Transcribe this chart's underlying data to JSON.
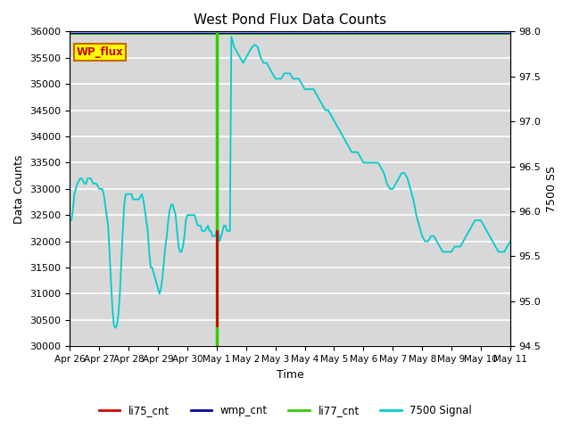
{
  "title": "West Pond Flux Data Counts",
  "xlabel": "Time",
  "ylabel_left": "Data Counts",
  "ylabel_right": "7500 SS",
  "ylim_left": [
    30000,
    36000
  ],
  "ylim_right": [
    94.5,
    98.0
  ],
  "bg_color": "#d8d8d8",
  "fig_bg_color": "#ffffff",
  "x_tick_labels": [
    "Apr 26",
    "Apr 27",
    "Apr 28",
    "Apr 29",
    "Apr 30",
    "May 1",
    "May 2",
    "May 3",
    "May 4",
    "May 5",
    "May 6",
    "May 7",
    "May 8",
    "May 9",
    "May 10",
    "May 11"
  ],
  "yticks_left": [
    30000,
    30500,
    31000,
    31500,
    32000,
    32500,
    33000,
    33500,
    34000,
    34500,
    35000,
    35500,
    36000
  ],
  "yticks_right": [
    94.5,
    95.0,
    95.5,
    96.0,
    96.5,
    97.0,
    97.5,
    98.0
  ],
  "wp_flux_box_color": "#ffff00",
  "wp_flux_text_color": "#cc0000",
  "wp_flux_border_color": "#cc6600",
  "legend_labels": [
    "li75_cnt",
    "wmp_cnt",
    "li77_cnt",
    "7500 Signal"
  ],
  "legend_colors": [
    "#cc0000",
    "#000099",
    "#00cc00",
    "#00cccc"
  ],
  "cyan_x": [
    0.0,
    0.05,
    0.1,
    0.15,
    0.2,
    0.25,
    0.3,
    0.35,
    0.4,
    0.45,
    0.5,
    0.55,
    0.6,
    0.65,
    0.7,
    0.8,
    0.9,
    1.0,
    1.05,
    1.1,
    1.15,
    1.2,
    1.25,
    1.3,
    1.35,
    1.4,
    1.45,
    1.5,
    1.55,
    1.6,
    1.65,
    1.7,
    1.75,
    1.8,
    1.85,
    1.9,
    1.95,
    2.0,
    2.05,
    2.1,
    2.15,
    2.2,
    2.25,
    2.3,
    2.35,
    2.4,
    2.45,
    2.5,
    2.55,
    2.6,
    2.65,
    2.7,
    2.75,
    2.8,
    2.85,
    2.9,
    2.95,
    3.0,
    3.05,
    3.1,
    3.15,
    3.2,
    3.25,
    3.3,
    3.35,
    3.4,
    3.45,
    3.5,
    3.55,
    3.6,
    3.65,
    3.7,
    3.75,
    3.8,
    3.85,
    3.9,
    3.95,
    4.0,
    4.05,
    4.1,
    4.15,
    4.2,
    4.25,
    4.3,
    4.35,
    4.4,
    4.45,
    4.5,
    4.55,
    4.6,
    4.65,
    4.7,
    4.75,
    4.8,
    4.85,
    4.9,
    4.95,
    5.0,
    5.05,
    5.1,
    5.15,
    5.2,
    5.25,
    5.3,
    5.35,
    5.4,
    5.45,
    5.5,
    5.6,
    5.7,
    5.8,
    5.9,
    6.0,
    6.1,
    6.2,
    6.3,
    6.4,
    6.5,
    6.6,
    6.7,
    6.8,
    6.9,
    7.0,
    7.1,
    7.2,
    7.3,
    7.4,
    7.5,
    7.6,
    7.7,
    7.8,
    7.9,
    8.0,
    8.1,
    8.2,
    8.3,
    8.4,
    8.5,
    8.6,
    8.7,
    8.8,
    8.9,
    9.0,
    9.1,
    9.2,
    9.3,
    9.4,
    9.5,
    9.6,
    9.7,
    9.8,
    9.9,
    10.0,
    10.1,
    10.2,
    10.3,
    10.4,
    10.5,
    10.6,
    10.7,
    10.8,
    10.9,
    11.0,
    11.1,
    11.2,
    11.3,
    11.4,
    11.5,
    11.6,
    11.7,
    11.8,
    11.9,
    12.0,
    12.1,
    12.2,
    12.3,
    12.4,
    12.5,
    12.6,
    12.7,
    12.8,
    12.9,
    13.0,
    13.1,
    13.2,
    13.3,
    13.4,
    13.5,
    13.6,
    13.7,
    13.8,
    13.9,
    14.0,
    14.1,
    14.2,
    14.3,
    14.4,
    14.5,
    14.6,
    14.7,
    14.8,
    14.9,
    15.0
  ],
  "cyan_y": [
    32400,
    32400,
    32600,
    32900,
    33000,
    33100,
    33150,
    33200,
    33200,
    33150,
    33100,
    33100,
    33200,
    33200,
    33200,
    33100,
    33100,
    33000,
    33000,
    33000,
    32900,
    32700,
    32500,
    32300,
    31800,
    31200,
    30700,
    30400,
    30350,
    30400,
    30600,
    31000,
    31600,
    32200,
    32700,
    32900,
    32900,
    32900,
    32900,
    32900,
    32800,
    32800,
    32800,
    32800,
    32800,
    32850,
    32900,
    32800,
    32600,
    32400,
    32200,
    31800,
    31500,
    31500,
    31400,
    31300,
    31200,
    31100,
    31000,
    31100,
    31300,
    31600,
    31900,
    32100,
    32400,
    32600,
    32700,
    32700,
    32600,
    32500,
    32200,
    31900,
    31800,
    31800,
    31900,
    32100,
    32400,
    32500,
    32500,
    32500,
    32500,
    32500,
    32500,
    32400,
    32300,
    32300,
    32300,
    32200,
    32200,
    32200,
    32250,
    32300,
    32200,
    32200,
    32100,
    32100,
    32100,
    32200,
    32200,
    32000,
    32100,
    32200,
    32300,
    32300,
    32200,
    32200,
    32200,
    35900,
    35700,
    35600,
    35500,
    35400,
    35500,
    35600,
    35700,
    35750,
    35700,
    35500,
    35400,
    35400,
    35300,
    35200,
    35100,
    35100,
    35100,
    35200,
    35200,
    35200,
    35100,
    35100,
    35100,
    35000,
    34900,
    34900,
    34900,
    34900,
    34800,
    34700,
    34600,
    34500,
    34500,
    34400,
    34300,
    34200,
    34100,
    34000,
    33900,
    33800,
    33700,
    33700,
    33700,
    33600,
    33500,
    33500,
    33500,
    33500,
    33500,
    33500,
    33400,
    33300,
    33100,
    33000,
    33000,
    33100,
    33200,
    33300,
    33300,
    33200,
    33000,
    32800,
    32500,
    32300,
    32100,
    32000,
    32000,
    32100,
    32100,
    32000,
    31900,
    31800,
    31800,
    31800,
    31800,
    31900,
    31900,
    31900,
    32000,
    32100,
    32200,
    32300,
    32400,
    32400,
    32400,
    32300,
    32200,
    32100,
    32000,
    31900,
    31800,
    31800,
    31800,
    31900,
    32000
  ]
}
